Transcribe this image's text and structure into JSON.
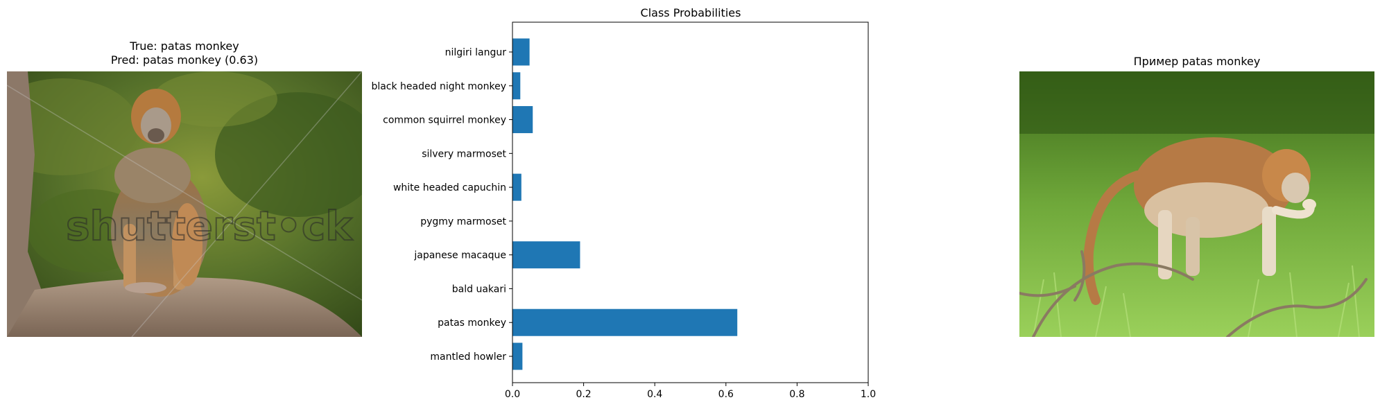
{
  "left_panel": {
    "title_line1": "True: patas monkey",
    "title_line2": "Pred: patas monkey (0.63)",
    "watermark": "shutterst•ck"
  },
  "right_panel": {
    "title": "Пример patas monkey"
  },
  "chart_data": {
    "type": "bar",
    "orientation": "horizontal",
    "title": "Class Probabilities",
    "xlabel": "",
    "ylabel": "",
    "xlim": [
      0,
      1.0
    ],
    "xticks": [
      "0.0",
      "0.2",
      "0.4",
      "0.6",
      "0.8",
      "1.0"
    ],
    "categories": [
      "mantled howler",
      "patas monkey",
      "bald uakari",
      "japanese macaque",
      "pygmy marmoset",
      "white headed capuchin",
      "silvery marmoset",
      "common squirrel monkey",
      "black headed night monkey",
      "nilgiri langur"
    ],
    "values": [
      0.028,
      0.632,
      0.0,
      0.19,
      0.0,
      0.025,
      0.0,
      0.057,
      0.022,
      0.048
    ],
    "bar_color": "#1f77b4",
    "grid": false
  }
}
